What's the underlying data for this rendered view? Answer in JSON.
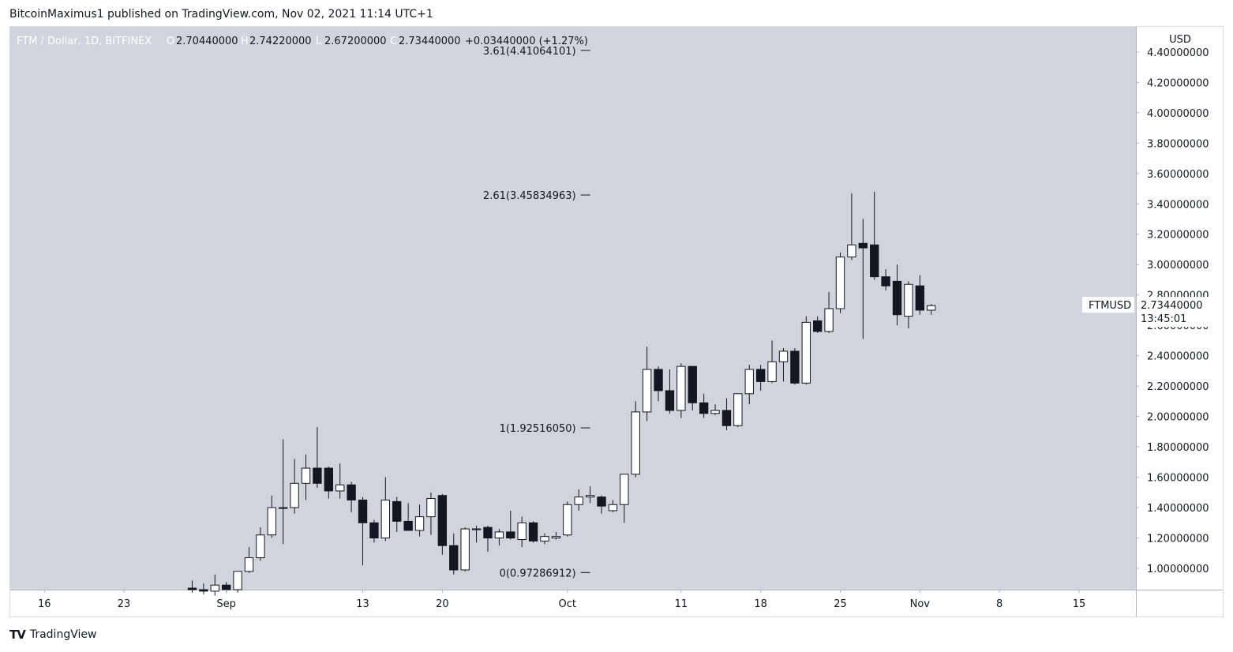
{
  "published": "BitcoinMaximus1 published on TradingView.com, Nov 02, 2021 11:14 UTC+1",
  "footer": {
    "brand": "TradingView"
  },
  "chart_data": {
    "type": "candlestick",
    "symbol": "FTM / Dollar, 1D, BITFINEX",
    "ohlc_header": {
      "open_label": "O",
      "open": "2.70440000",
      "high_label": "H",
      "high": "2.74220000",
      "low_label": "L",
      "low": "2.67200000",
      "close_label": "C",
      "close": "2.73440000",
      "change": "+0.03440000 (+1.27%)"
    },
    "currency": "USD",
    "ticker": "FTMUSD",
    "last_price": "2.73440000",
    "countdown": "13:45:01",
    "ylim": [
      0.86,
      4.42
    ],
    "y_ticks": [
      1.0,
      1.2,
      1.4,
      1.6,
      1.8,
      2.0,
      2.2,
      2.4,
      2.6,
      2.8,
      3.0,
      3.2,
      3.4,
      3.6,
      3.8,
      4.0,
      4.2,
      4.4
    ],
    "y_tick_labels": [
      "1.00000000",
      "1.20000000",
      "1.40000000",
      "1.60000000",
      "1.80000000",
      "2.00000000",
      "2.20000000",
      "2.40000000",
      "2.60000000",
      "2.80000000",
      "3.00000000",
      "3.20000000",
      "3.40000000",
      "3.60000000",
      "3.80000000",
      "4.00000000",
      "4.20000000",
      "4.40000000"
    ],
    "x_start": "2021-08-13",
    "x_end": "2021-11-20",
    "x_ticks": [
      {
        "date": "2021-08-16",
        "label": "16"
      },
      {
        "date": "2021-08-23",
        "label": "23"
      },
      {
        "date": "2021-09-01",
        "label": "Sep"
      },
      {
        "date": "2021-09-13",
        "label": "13"
      },
      {
        "date": "2021-09-20",
        "label": "20"
      },
      {
        "date": "2021-10-01",
        "label": "Oct"
      },
      {
        "date": "2021-10-11",
        "label": "11"
      },
      {
        "date": "2021-10-18",
        "label": "18"
      },
      {
        "date": "2021-10-25",
        "label": "25"
      },
      {
        "date": "2021-11-01",
        "label": "Nov"
      },
      {
        "date": "2021-11-08",
        "label": "8"
      },
      {
        "date": "2021-11-15",
        "label": "15"
      }
    ],
    "fib_levels": [
      {
        "label": "3.61(4.41064101)",
        "value": 4.41064101
      },
      {
        "label": "2.61(3.45834963)",
        "value": 3.45834963
      },
      {
        "label": "1(1.92516050)",
        "value": 1.9251605
      },
      {
        "label": "0(0.97286912)",
        "value": 0.97286912
      }
    ],
    "fib_start": "2021-09-22",
    "fib_end": "2021-10-03",
    "candles": [
      {
        "d": "2021-08-29",
        "o": 0.87,
        "h": 0.92,
        "l": 0.84,
        "c": 0.86
      },
      {
        "d": "2021-08-30",
        "o": 0.86,
        "h": 0.9,
        "l": 0.83,
        "c": 0.85
      },
      {
        "d": "2021-08-31",
        "o": 0.85,
        "h": 0.96,
        "l": 0.82,
        "c": 0.89
      },
      {
        "d": "2021-09-01",
        "o": 0.89,
        "h": 0.91,
        "l": 0.84,
        "c": 0.86
      },
      {
        "d": "2021-09-02",
        "o": 0.86,
        "h": 0.98,
        "l": 0.84,
        "c": 0.98
      },
      {
        "d": "2021-09-03",
        "o": 0.98,
        "h": 1.14,
        "l": 0.97,
        "c": 1.07
      },
      {
        "d": "2021-09-04",
        "o": 1.07,
        "h": 1.27,
        "l": 1.05,
        "c": 1.22
      },
      {
        "d": "2021-09-05",
        "o": 1.22,
        "h": 1.48,
        "l": 1.2,
        "c": 1.4
      },
      {
        "d": "2021-09-06",
        "o": 1.4,
        "h": 1.85,
        "l": 1.16,
        "c": 1.4
      },
      {
        "d": "2021-09-07",
        "o": 1.4,
        "h": 1.72,
        "l": 1.36,
        "c": 1.56
      },
      {
        "d": "2021-09-08",
        "o": 1.56,
        "h": 1.75,
        "l": 1.45,
        "c": 1.66
      },
      {
        "d": "2021-09-09",
        "o": 1.66,
        "h": 1.93,
        "l": 1.53,
        "c": 1.56
      },
      {
        "d": "2021-09-10",
        "o": 1.66,
        "h": 1.67,
        "l": 1.46,
        "c": 1.51
      },
      {
        "d": "2021-09-11",
        "o": 1.51,
        "h": 1.69,
        "l": 1.46,
        "c": 1.55
      },
      {
        "d": "2021-09-12",
        "o": 1.55,
        "h": 1.57,
        "l": 1.37,
        "c": 1.45
      },
      {
        "d": "2021-09-13",
        "o": 1.45,
        "h": 1.47,
        "l": 1.02,
        "c": 1.3
      },
      {
        "d": "2021-09-14",
        "o": 1.3,
        "h": 1.32,
        "l": 1.17,
        "c": 1.2
      },
      {
        "d": "2021-09-15",
        "o": 1.2,
        "h": 1.6,
        "l": 1.18,
        "c": 1.45
      },
      {
        "d": "2021-09-16",
        "o": 1.44,
        "h": 1.47,
        "l": 1.24,
        "c": 1.31
      },
      {
        "d": "2021-09-17",
        "o": 1.31,
        "h": 1.43,
        "l": 1.26,
        "c": 1.25
      },
      {
        "d": "2021-09-18",
        "o": 1.25,
        "h": 1.42,
        "l": 1.21,
        "c": 1.34
      },
      {
        "d": "2021-09-19",
        "o": 1.34,
        "h": 1.5,
        "l": 1.22,
        "c": 1.46
      },
      {
        "d": "2021-09-20",
        "o": 1.48,
        "h": 1.49,
        "l": 1.09,
        "c": 1.15
      },
      {
        "d": "2021-09-21",
        "o": 1.15,
        "h": 1.23,
        "l": 0.96,
        "c": 0.99
      },
      {
        "d": "2021-09-22",
        "o": 0.99,
        "h": 1.27,
        "l": 0.98,
        "c": 1.26
      },
      {
        "d": "2021-09-23",
        "o": 1.26,
        "h": 1.28,
        "l": 1.17,
        "c": 1.26
      },
      {
        "d": "2021-09-24",
        "o": 1.27,
        "h": 1.28,
        "l": 1.11,
        "c": 1.2
      },
      {
        "d": "2021-09-25",
        "o": 1.2,
        "h": 1.26,
        "l": 1.15,
        "c": 1.24
      },
      {
        "d": "2021-09-26",
        "o": 1.24,
        "h": 1.38,
        "l": 1.19,
        "c": 1.2
      },
      {
        "d": "2021-09-27",
        "o": 1.19,
        "h": 1.34,
        "l": 1.14,
        "c": 1.3
      },
      {
        "d": "2021-09-28",
        "o": 1.3,
        "h": 1.31,
        "l": 1.17,
        "c": 1.18
      },
      {
        "d": "2021-09-29",
        "o": 1.18,
        "h": 1.23,
        "l": 1.16,
        "c": 1.21
      },
      {
        "d": "2021-09-30",
        "o": 1.2,
        "h": 1.24,
        "l": 1.19,
        "c": 1.21
      },
      {
        "d": "2021-10-01",
        "o": 1.22,
        "h": 1.44,
        "l": 1.21,
        "c": 1.42
      },
      {
        "d": "2021-10-02",
        "o": 1.42,
        "h": 1.52,
        "l": 1.38,
        "c": 1.47
      },
      {
        "d": "2021-10-03",
        "o": 1.47,
        "h": 1.54,
        "l": 1.43,
        "c": 1.48
      },
      {
        "d": "2021-10-04",
        "o": 1.47,
        "h": 1.48,
        "l": 1.36,
        "c": 1.41
      },
      {
        "d": "2021-10-05",
        "o": 1.38,
        "h": 1.45,
        "l": 1.37,
        "c": 1.42
      },
      {
        "d": "2021-10-06",
        "o": 1.42,
        "h": 1.62,
        "l": 1.3,
        "c": 1.62
      },
      {
        "d": "2021-10-07",
        "o": 1.62,
        "h": 2.1,
        "l": 1.6,
        "c": 2.03
      },
      {
        "d": "2021-10-08",
        "o": 2.03,
        "h": 2.46,
        "l": 1.97,
        "c": 2.31
      },
      {
        "d": "2021-10-09",
        "o": 2.31,
        "h": 2.33,
        "l": 2.1,
        "c": 2.17
      },
      {
        "d": "2021-10-10",
        "o": 2.17,
        "h": 2.31,
        "l": 2.02,
        "c": 2.04
      },
      {
        "d": "2021-10-11",
        "o": 2.04,
        "h": 2.35,
        "l": 1.99,
        "c": 2.33
      },
      {
        "d": "2021-10-12",
        "o": 2.33,
        "h": 2.33,
        "l": 2.04,
        "c": 2.09
      },
      {
        "d": "2021-10-13",
        "o": 2.09,
        "h": 2.15,
        "l": 1.99,
        "c": 2.02
      },
      {
        "d": "2021-10-14",
        "o": 2.02,
        "h": 2.08,
        "l": 2.01,
        "c": 2.04
      },
      {
        "d": "2021-10-15",
        "o": 2.04,
        "h": 2.12,
        "l": 1.91,
        "c": 1.94
      },
      {
        "d": "2021-10-16",
        "o": 1.94,
        "h": 2.15,
        "l": 1.93,
        "c": 2.15
      },
      {
        "d": "2021-10-17",
        "o": 2.15,
        "h": 2.34,
        "l": 2.08,
        "c": 2.31
      },
      {
        "d": "2021-10-18",
        "o": 2.31,
        "h": 2.34,
        "l": 2.17,
        "c": 2.23
      },
      {
        "d": "2021-10-19",
        "o": 2.23,
        "h": 2.5,
        "l": 2.22,
        "c": 2.36
      },
      {
        "d": "2021-10-20",
        "o": 2.36,
        "h": 2.45,
        "l": 2.23,
        "c": 2.43
      },
      {
        "d": "2021-10-21",
        "o": 2.43,
        "h": 2.45,
        "l": 2.21,
        "c": 2.22
      },
      {
        "d": "2021-10-22",
        "o": 2.22,
        "h": 2.66,
        "l": 2.21,
        "c": 2.62
      },
      {
        "d": "2021-10-23",
        "o": 2.63,
        "h": 2.66,
        "l": 2.55,
        "c": 2.56
      },
      {
        "d": "2021-10-24",
        "o": 2.56,
        "h": 2.82,
        "l": 2.55,
        "c": 2.71
      },
      {
        "d": "2021-10-25",
        "o": 2.71,
        "h": 3.08,
        "l": 2.68,
        "c": 3.05
      },
      {
        "d": "2021-10-26",
        "o": 3.05,
        "h": 3.47,
        "l": 3.03,
        "c": 3.13
      },
      {
        "d": "2021-10-27",
        "o": 3.14,
        "h": 3.3,
        "l": 2.51,
        "c": 3.11
      },
      {
        "d": "2021-10-28",
        "o": 3.13,
        "h": 3.48,
        "l": 2.9,
        "c": 2.92
      },
      {
        "d": "2021-10-29",
        "o": 2.92,
        "h": 2.97,
        "l": 2.83,
        "c": 2.86
      },
      {
        "d": "2021-10-30",
        "o": 2.89,
        "h": 3.0,
        "l": 2.6,
        "c": 2.67
      },
      {
        "d": "2021-10-31",
        "o": 2.66,
        "h": 2.89,
        "l": 2.58,
        "c": 2.87
      },
      {
        "d": "2021-11-01",
        "o": 2.86,
        "h": 2.93,
        "l": 2.67,
        "c": 2.7
      },
      {
        "d": "2021-11-02",
        "o": 2.7,
        "h": 2.74,
        "l": 2.67,
        "c": 2.73
      }
    ],
    "colors": {
      "plot_bg": "#d1d4dc",
      "axis_bg": "#ffffff",
      "bull": "#ffffff",
      "bear": "#131722",
      "text": "#131722"
    }
  }
}
